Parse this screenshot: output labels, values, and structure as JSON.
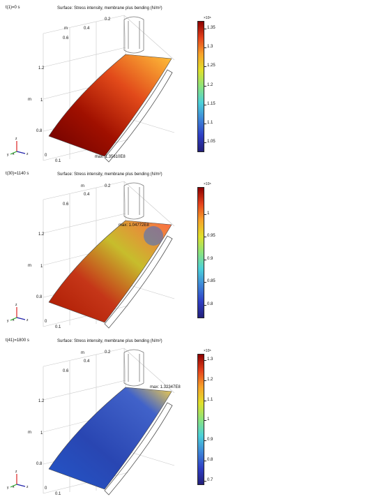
{
  "plots": [
    {
      "time_label": "t(1)=0 s",
      "title": "Surface: Stress intensity, membrane plus bending (N/m²)",
      "exponent": "×10⁸",
      "colorbar_ticks": [
        "1.35",
        "1.3",
        "1.25",
        "1.2",
        "1.15",
        "1.1",
        "1.05"
      ],
      "colorbar_range": [
        1.025,
        1.37
      ],
      "max_label": "max: 1.35610E8",
      "surface_colors": {
        "top": "#ffc23a",
        "mid": "#e24a1a",
        "low": "#a01000",
        "bottom": "#6b0000"
      }
    },
    {
      "time_label": "t(30)=1140 s",
      "title": "Surface: Stress intensity, membrane plus bending (N/m²)",
      "exponent": "×10⁸",
      "colorbar_ticks": [
        "1",
        "0.95",
        "0.9",
        "0.85",
        "0.8"
      ],
      "colorbar_range": [
        0.77,
        1.06
      ],
      "max_label": "max: 1.04772E8",
      "surface_colors": {
        "top": "#ff6a44",
        "mid": "#c7bd2c",
        "low": "#c53618",
        "bottom": "#aa1800"
      }
    },
    {
      "time_label": "t(41)=1800 s",
      "title": "Surface: Stress intensity, membrane plus bending (N/m²)",
      "exponent": "×10⁸",
      "colorbar_ticks": [
        "1.3",
        "1.2",
        "1.1",
        "1",
        "0.9",
        "0.8",
        "0.7"
      ],
      "colorbar_range": [
        0.68,
        1.33
      ],
      "max_label": "max: 1.32347E8",
      "surface_colors": {
        "top": "#f6d049",
        "mid": "#4162c9",
        "low": "#2946b2",
        "bottom": "#2356c8"
      }
    }
  ],
  "axes": {
    "top_labels": [
      "m",
      "0.2",
      "0.4",
      "0.6"
    ],
    "side_labels": [
      "1.2",
      "1",
      "0.8"
    ],
    "side_unit": "m",
    "bottom_labels": [
      "0",
      "0.1"
    ]
  },
  "triad": {
    "x": "x",
    "y": "y",
    "z": "z"
  },
  "colormap": [
    "#23207a",
    "#2f3fc4",
    "#3e86d8",
    "#4bd0d9",
    "#8be37d",
    "#e0e02b",
    "#f7a22a",
    "#e4421c",
    "#8c0000"
  ]
}
